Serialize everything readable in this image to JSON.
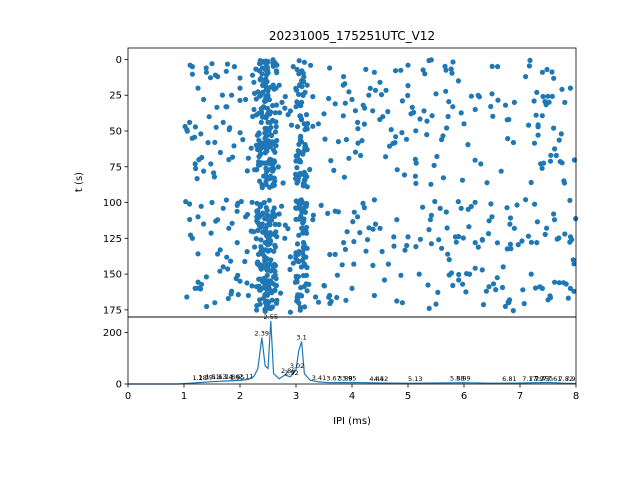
{
  "chart_data": [
    {
      "type": "scatter",
      "title": "20231005_175251UTC_V12",
      "ylabel": "t (s)",
      "xlim": [
        0,
        8
      ],
      "ylim": [
        180,
        -8
      ],
      "y_inverted": true,
      "y_ticks": [
        0,
        25,
        50,
        75,
        100,
        125,
        150,
        175
      ],
      "y_tick_labels": [
        "0",
        "25",
        "50",
        "75",
        "100",
        "125",
        "150",
        "175"
      ],
      "marker_color": "#1f77b4",
      "dense_columns_ms": [
        2.4,
        2.55,
        3.1
      ],
      "points": [
        [
          1.15,
          5
        ],
        [
          1.4,
          9
        ],
        [
          1.25,
          20
        ],
        [
          1.35,
          28
        ],
        [
          1.1,
          44
        ],
        [
          1.05,
          49
        ],
        [
          1.3,
          52
        ],
        [
          1.2,
          73
        ],
        [
          1.35,
          78
        ],
        [
          1.5,
          3
        ],
        [
          1.6,
          12
        ],
        [
          1.45,
          40
        ],
        [
          1.7,
          44
        ],
        [
          1.55,
          58
        ],
        [
          1.65,
          65
        ],
        [
          1.8,
          70
        ],
        [
          1.9,
          5
        ],
        [
          2.0,
          20
        ],
        [
          2.1,
          28
        ],
        [
          1.75,
          33
        ],
        [
          2.05,
          56
        ],
        [
          2.2,
          62
        ],
        [
          2.15,
          69
        ],
        [
          2.3,
          77
        ],
        [
          2.35,
          85
        ],
        [
          2.0,
          13
        ],
        [
          1.85,
          25
        ],
        [
          2.25,
          35
        ],
        [
          2.4,
          6
        ],
        [
          2.45,
          15
        ],
        [
          2.5,
          22
        ],
        [
          2.42,
          33
        ],
        [
          2.38,
          44
        ],
        [
          2.52,
          50
        ],
        [
          2.6,
          58
        ],
        [
          2.48,
          64
        ],
        [
          2.55,
          70
        ],
        [
          2.58,
          78
        ],
        [
          2.62,
          85
        ],
        [
          2.35,
          3
        ],
        [
          2.65,
          8
        ],
        [
          2.7,
          18
        ],
        [
          2.75,
          30
        ],
        [
          2.8,
          34
        ],
        [
          2.9,
          36
        ],
        [
          3.0,
          33
        ],
        [
          3.1,
          30
        ],
        [
          3.05,
          10
        ],
        [
          2.95,
          5
        ],
        [
          3.15,
          2
        ],
        [
          3.2,
          18
        ],
        [
          3.3,
          26
        ],
        [
          3.4,
          45
        ],
        [
          3.5,
          38
        ],
        [
          3.6,
          6
        ],
        [
          3.7,
          31
        ],
        [
          3.85,
          12
        ],
        [
          3.9,
          56
        ],
        [
          4.0,
          28
        ],
        [
          4.1,
          44
        ],
        [
          4.2,
          32
        ],
        [
          4.3,
          25
        ],
        [
          4.4,
          9
        ],
        [
          4.5,
          16
        ],
        [
          4.55,
          40
        ],
        [
          4.6,
          68
        ],
        [
          4.7,
          49
        ],
        [
          4.9,
          29
        ],
        [
          5.0,
          4
        ],
        [
          5.1,
          37
        ],
        [
          5.3,
          10
        ],
        [
          5.5,
          24
        ],
        [
          5.6,
          56
        ],
        [
          5.8,
          33
        ],
        [
          5.9,
          15
        ],
        [
          6.0,
          45
        ],
        [
          6.2,
          35
        ],
        [
          6.3,
          73
        ],
        [
          6.5,
          24
        ],
        [
          6.6,
          5
        ],
        [
          6.8,
          42
        ],
        [
          6.9,
          30
        ],
        [
          7.1,
          12
        ],
        [
          7.2,
          86
        ],
        [
          7.3,
          23
        ],
        [
          7.4,
          9
        ],
        [
          7.55,
          67
        ],
        [
          7.6,
          48
        ],
        [
          7.8,
          30
        ],
        [
          7.9,
          20
        ],
        [
          1.1,
          101
        ],
        [
          1.25,
          110
        ],
        [
          1.15,
          125
        ],
        [
          1.35,
          115
        ],
        [
          1.5,
          100
        ],
        [
          1.6,
          112
        ],
        [
          1.7,
          104
        ],
        [
          1.8,
          118
        ],
        [
          1.95,
          102
        ],
        [
          2.1,
          110
        ],
        [
          2.2,
          120
        ],
        [
          2.3,
          106
        ],
        [
          2.4,
          115
        ],
        [
          2.45,
          128
        ],
        [
          2.5,
          134
        ],
        [
          2.55,
          140
        ],
        [
          2.48,
          147
        ],
        [
          2.6,
          152
        ],
        [
          2.52,
          160
        ],
        [
          2.42,
          167
        ],
        [
          2.58,
          173
        ],
        [
          2.45,
          176
        ],
        [
          2.65,
          158
        ],
        [
          2.7,
          108
        ],
        [
          2.8,
          125
        ],
        [
          2.9,
          138
        ],
        [
          3.0,
          104
        ],
        [
          3.1,
          118
        ],
        [
          3.2,
          132
        ],
        [
          3.3,
          112
        ],
        [
          3.45,
          102
        ],
        [
          3.6,
          165
        ],
        [
          3.7,
          106
        ],
        [
          3.85,
          128
        ],
        [
          4.0,
          160
        ],
        [
          4.1,
          110
        ],
        [
          4.25,
          134
        ],
        [
          4.4,
          165
        ],
        [
          4.5,
          118
        ],
        [
          4.65,
          143
        ],
        [
          4.8,
          112
        ],
        [
          4.9,
          170
        ],
        [
          5.0,
          124
        ],
        [
          5.2,
          150
        ],
        [
          5.4,
          112
        ],
        [
          5.5,
          171
        ],
        [
          5.6,
          132
        ],
        [
          5.8,
          158
        ],
        [
          5.95,
          104
        ],
        [
          6.1,
          150
        ],
        [
          6.2,
          128
        ],
        [
          6.4,
          162
        ],
        [
          6.5,
          110
        ],
        [
          6.7,
          145
        ],
        [
          6.8,
          170
        ],
        [
          6.9,
          118
        ],
        [
          7.05,
          161
        ],
        [
          7.1,
          98
        ],
        [
          7.2,
          150
        ],
        [
          7.3,
          128
        ],
        [
          7.4,
          160
        ],
        [
          7.5,
          168
        ],
        [
          7.6,
          108
        ],
        [
          7.7,
          156
        ],
        [
          7.8,
          122
        ],
        [
          7.9,
          160
        ],
        [
          7.95,
          140
        ],
        [
          1.05,
          166
        ],
        [
          1.2,
          160
        ],
        [
          1.4,
          152
        ],
        [
          1.55,
          170
        ],
        [
          1.7,
          145
        ],
        [
          1.85,
          162
        ],
        [
          2.0,
          155
        ],
        [
          2.15,
          165
        ],
        [
          2.3,
          172
        ],
        [
          1.6,
          136
        ],
        [
          1.95,
          128
        ],
        [
          3.35,
          166
        ],
        [
          3.5,
          158
        ]
      ]
    },
    {
      "type": "line",
      "xlabel": "IPI (ms)",
      "xlim": [
        0,
        8
      ],
      "ylim": [
        0,
        260
      ],
      "x_ticks": [
        0,
        1,
        2,
        3,
        4,
        5,
        6,
        7,
        8
      ],
      "x_tick_labels": [
        "0",
        "1",
        "2",
        "3",
        "4",
        "5",
        "6",
        "7",
        "8"
      ],
      "y_ticks": [
        0,
        200
      ],
      "y_tick_labels": [
        "0",
        "200"
      ],
      "line_color": "#1f77b4",
      "x": [
        0,
        0.9,
        1.1,
        1.3,
        1.5,
        1.8,
        2.0,
        2.15,
        2.25,
        2.32,
        2.39,
        2.45,
        2.5,
        2.55,
        2.6,
        2.7,
        2.8,
        2.9,
        3.0,
        3.05,
        3.1,
        3.15,
        3.25,
        3.4,
        3.6,
        4.0,
        4.5,
        5.0,
        5.5,
        6.0,
        6.5,
        7.0,
        7.5,
        7.8,
        8.0
      ],
      "values": [
        0,
        0,
        3,
        6,
        9,
        12,
        14,
        18,
        30,
        60,
        180,
        70,
        60,
        245,
        40,
        20,
        35,
        28,
        55,
        130,
        165,
        40,
        15,
        8,
        5,
        6,
        4,
        3,
        4,
        5,
        3,
        4,
        6,
        3,
        2
      ],
      "peak_labels": [
        {
          "x": 1.28,
          "y": 8,
          "text": "1.28"
        },
        {
          "x": 1.39,
          "y": 10,
          "text": "1.39"
        },
        {
          "x": 1.51,
          "y": 12,
          "text": "1.51"
        },
        {
          "x": 1.63,
          "y": 12,
          "text": "1.63"
        },
        {
          "x": 1.74,
          "y": 12,
          "text": "1.74"
        },
        {
          "x": 1.86,
          "y": 12,
          "text": "1.86"
        },
        {
          "x": 1.95,
          "y": 10,
          "text": "1.95"
        },
        {
          "x": 2.11,
          "y": 14,
          "text": "2.11"
        },
        {
          "x": 2.39,
          "y": 180,
          "text": "2.39"
        },
        {
          "x": 2.55,
          "y": 245,
          "text": "2.55"
        },
        {
          "x": 2.86,
          "y": 35,
          "text": "2.86"
        },
        {
          "x": 2.92,
          "y": 28,
          "text": "2.92"
        },
        {
          "x": 3.02,
          "y": 55,
          "text": "3.02"
        },
        {
          "x": 3.1,
          "y": 165,
          "text": "3.1"
        },
        {
          "x": 3.41,
          "y": 8,
          "text": "3.41"
        },
        {
          "x": 3.67,
          "y": 5,
          "text": "3.67"
        },
        {
          "x": 3.88,
          "y": 5,
          "text": "3.88"
        },
        {
          "x": 3.95,
          "y": 5,
          "text": "3.95"
        },
        {
          "x": 4.44,
          "y": 4,
          "text": "4.44"
        },
        {
          "x": 4.52,
          "y": 4,
          "text": "4.52"
        },
        {
          "x": 5.13,
          "y": 3,
          "text": "5.13"
        },
        {
          "x": 5.88,
          "y": 5,
          "text": "5.88"
        },
        {
          "x": 5.99,
          "y": 5,
          "text": "5.99"
        },
        {
          "x": 6.81,
          "y": 4,
          "text": "6.81"
        },
        {
          "x": 7.17,
          "y": 3,
          "text": "7.17"
        },
        {
          "x": 7.29,
          "y": 3,
          "text": "7.29"
        },
        {
          "x": 7.39,
          "y": 6,
          "text": "7.39"
        },
        {
          "x": 7.5,
          "y": 5,
          "text": "7.5"
        },
        {
          "x": 7.61,
          "y": 4,
          "text": "7.61"
        },
        {
          "x": 7.82,
          "y": 3,
          "text": "7.82"
        },
        {
          "x": 7.9,
          "y": 3,
          "text": "7.9"
        }
      ]
    }
  ]
}
